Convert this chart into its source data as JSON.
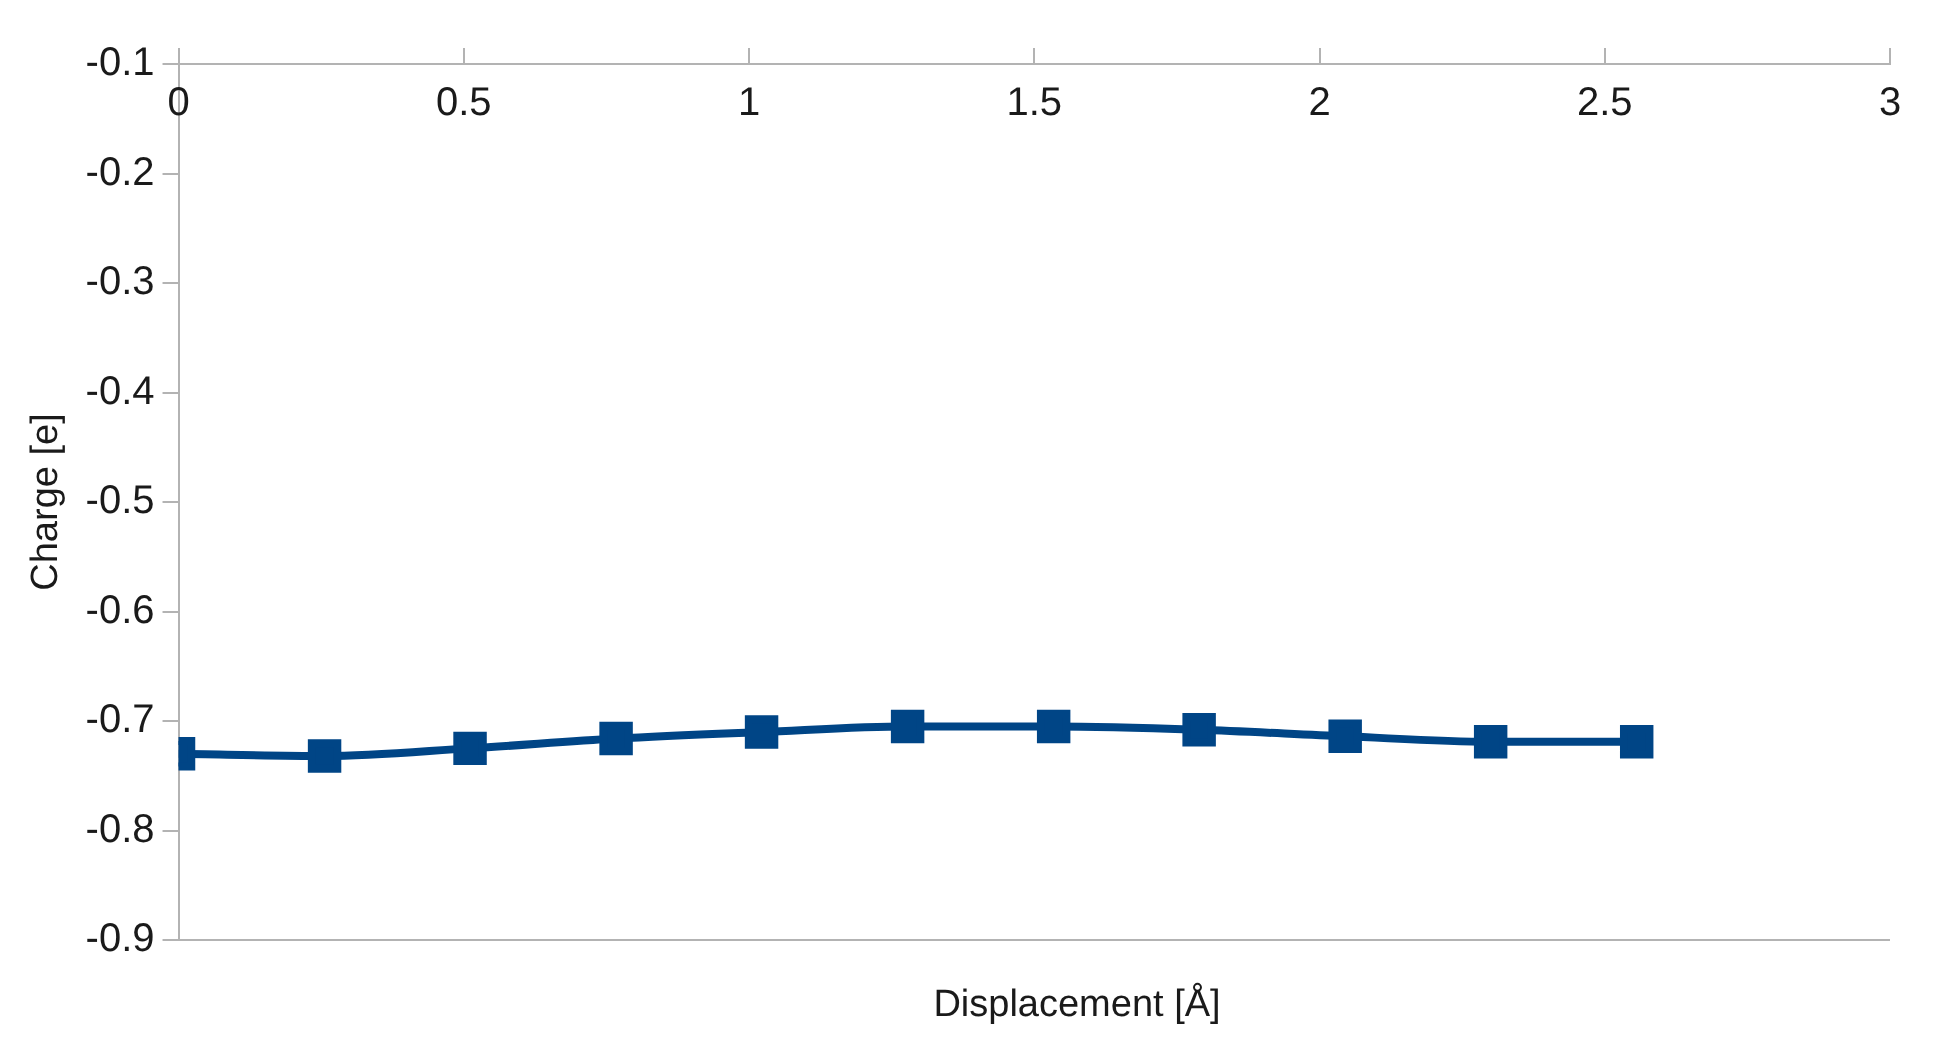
{
  "chart_data": {
    "type": "line",
    "xlabel": "Displacement [Å]",
    "ylabel": "Charge [e]",
    "x": [
      0,
      0.256,
      0.511,
      0.767,
      1.022,
      1.278,
      1.534,
      1.789,
      2.045,
      2.3,
      2.556
    ],
    "series": [
      {
        "color": "#004586",
        "values": [
          -0.73,
          -0.732,
          -0.725,
          -0.716,
          -0.71,
          -0.705,
          -0.705,
          -0.708,
          -0.714,
          -0.719,
          -0.719
        ]
      }
    ],
    "xlim": [
      0,
      3
    ],
    "xticks": [
      0,
      0.5,
      1,
      1.5,
      2,
      2.5,
      3
    ],
    "ylim": [
      -0.9,
      -0.1
    ],
    "yticks": [
      -0.9,
      -0.8,
      -0.7,
      -0.6,
      -0.5,
      -0.4,
      -0.3,
      -0.2,
      -0.1
    ],
    "grid": false,
    "legend": false,
    "marker": "square",
    "line_style": "solid"
  }
}
